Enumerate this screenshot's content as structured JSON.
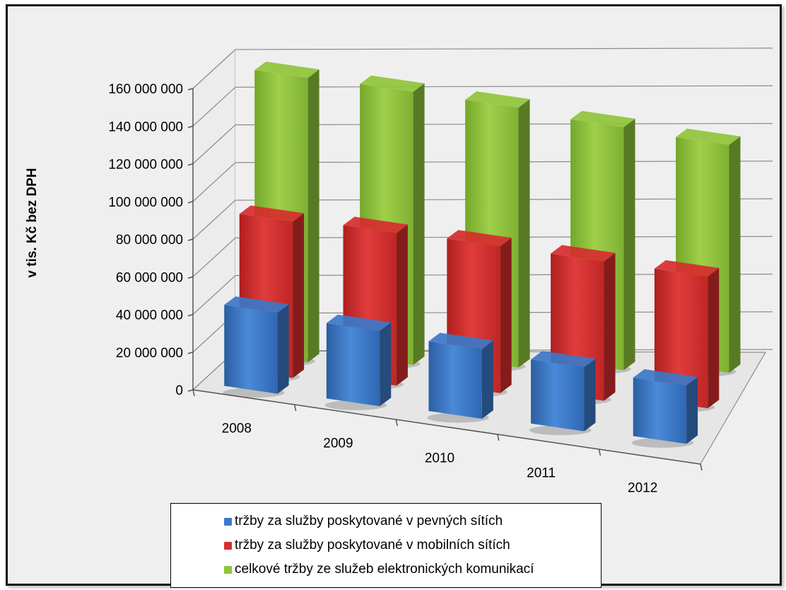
{
  "chart_data": {
    "type": "bar",
    "subtype": "3d-clustered-depth",
    "categories": [
      "2008",
      "2009",
      "2010",
      "2011",
      "2012"
    ],
    "series": [
      {
        "name": "tržby za služby poskytované v pevných sítích",
        "color": "#3b78c8",
        "values": [
          43000000,
          40000000,
          37000000,
          34000000,
          31000000
        ]
      },
      {
        "name": "tržby za služby poskytované v mobilních sítích",
        "color": "#d62d2d",
        "values": [
          83000000,
          81000000,
          78000000,
          74000000,
          70000000
        ]
      },
      {
        "name": "celkové tržby ze služeb elektronických komunikací",
        "color": "#8fc43a",
        "values": [
          151000000,
          145000000,
          138000000,
          129000000,
          121000000
        ]
      }
    ],
    "ylabel": "v tis. Kč bez DPH",
    "xlabel": "",
    "title": "",
    "ylim": [
      0,
      160000000
    ],
    "yticks": [
      0,
      20000000,
      40000000,
      60000000,
      80000000,
      100000000,
      120000000,
      140000000,
      160000000
    ],
    "ytick_labels": [
      "0",
      "20 000 000",
      "40 000 000",
      "60 000 000",
      "80 000 000",
      "100 000 000",
      "120 000 000",
      "140 000 000",
      "160 000 000"
    ],
    "grid": true,
    "legend_position": "bottom"
  }
}
